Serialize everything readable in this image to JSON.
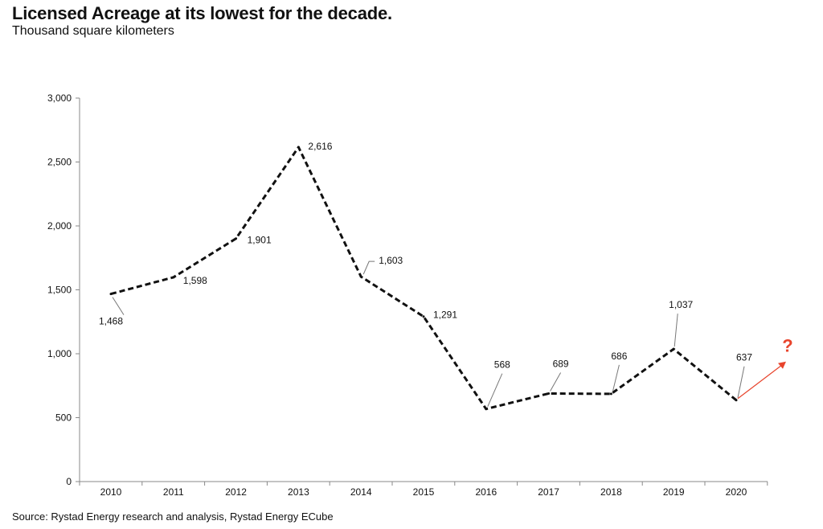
{
  "chart_data": {
    "type": "line",
    "title": "Licensed Acreage at its lowest for the decade.",
    "subtitle": "Thousand square kilometers",
    "x": [
      "2010",
      "2011",
      "2012",
      "2013",
      "2014",
      "2015",
      "2016",
      "2017",
      "2018",
      "2019",
      "2020"
    ],
    "series": [
      {
        "values": [
          1468,
          1598,
          1901,
          2616,
          1603,
          1291,
          568,
          689,
          686,
          1037,
          637
        ]
      }
    ],
    "data_labels": [
      "1,468",
      "1,598",
      "1,901",
      "2,616",
      "1,603",
      "1,291",
      "568",
      "689",
      "686",
      "1,037",
      "637"
    ],
    "y_ticks": [
      0,
      500,
      1000,
      1500,
      2000,
      2500,
      3000
    ],
    "y_tick_labels": [
      "0",
      "500",
      "1,000",
      "1,500",
      "2,000",
      "2,500",
      "3,000"
    ],
    "ylim": [
      0,
      3000
    ],
    "grid": false,
    "annotation": "?",
    "line_color": "#111111",
    "annotation_color": "#e8442c",
    "source": "Source: Rystad Energy research and analysis, Rystad Energy ECube"
  }
}
